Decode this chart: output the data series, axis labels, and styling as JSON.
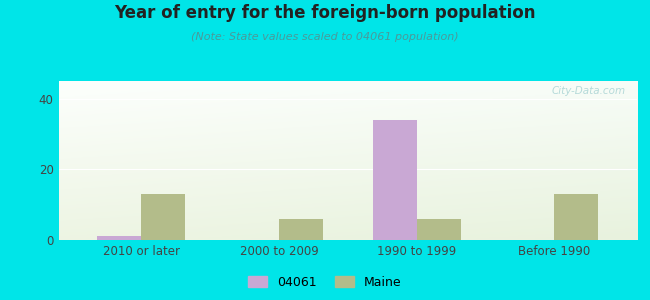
{
  "title": "Year of entry for the foreign-born population",
  "subtitle": "(Note: State values scaled to 04061 population)",
  "categories": [
    "2010 or later",
    "2000 to 2009",
    "1990 to 1999",
    "Before 1990"
  ],
  "values_04061": [
    1,
    0,
    34,
    0
  ],
  "values_maine": [
    13,
    6,
    6,
    13
  ],
  "color_04061": "#c9a8d4",
  "color_maine": "#b3bc8a",
  "background_outer": "#00e5e8",
  "ylim": [
    0,
    45
  ],
  "yticks": [
    0,
    20,
    40
  ],
  "bar_width": 0.32,
  "legend_label_04061": "04061",
  "legend_label_maine": "Maine",
  "title_color": "#222222",
  "subtitle_color": "#4a9a9a",
  "tick_color": "#444444"
}
